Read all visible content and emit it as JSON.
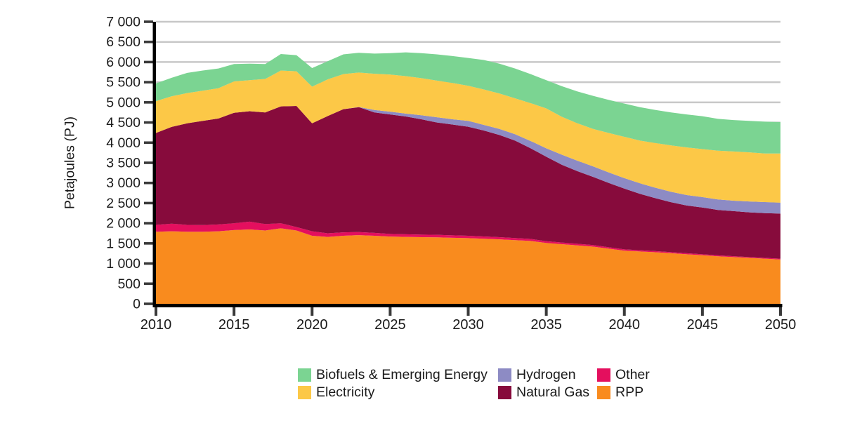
{
  "chart_data": {
    "type": "area",
    "stacked": true,
    "title": "",
    "xlabel": "",
    "ylabel": "Petajoules (PJ)",
    "x_start": 2010,
    "x_end": 2050,
    "x": [
      2010,
      2011,
      2012,
      2013,
      2014,
      2015,
      2016,
      2017,
      2018,
      2019,
      2020,
      2021,
      2022,
      2023,
      2024,
      2025,
      2026,
      2027,
      2028,
      2029,
      2030,
      2031,
      2032,
      2033,
      2034,
      2035,
      2036,
      2037,
      2038,
      2039,
      2040,
      2041,
      2042,
      2043,
      2044,
      2045,
      2046,
      2047,
      2048,
      2049,
      2050
    ],
    "ylim": [
      0,
      7000
    ],
    "ytick_interval": 500,
    "ytick_labels": [
      "0",
      "500",
      "1 000",
      "1 500",
      "2 000",
      "2 500",
      "3 000",
      "3 500",
      "4 000",
      "4 500",
      "5 000",
      "5 500",
      "6 000",
      "6 500",
      "7 000"
    ],
    "xticks": [
      2010,
      2015,
      2020,
      2025,
      2030,
      2035,
      2040,
      2045,
      2050
    ],
    "grid": "horizontal",
    "grid_color": "#c8c8c8",
    "axis_color": "#000000",
    "tick_color": "#3a3a3a",
    "stack_order": "bottom_to_top",
    "series": [
      {
        "name": "RPP",
        "key": "rpp",
        "color": "#F98B1E",
        "values": [
          1790,
          1800,
          1790,
          1790,
          1800,
          1830,
          1845,
          1820,
          1875,
          1820,
          1690,
          1660,
          1690,
          1705,
          1690,
          1670,
          1660,
          1655,
          1650,
          1640,
          1630,
          1615,
          1600,
          1580,
          1560,
          1510,
          1480,
          1450,
          1420,
          1370,
          1320,
          1300,
          1280,
          1255,
          1230,
          1205,
          1180,
          1160,
          1140,
          1120,
          1100
        ]
      },
      {
        "name": "Other",
        "key": "other",
        "color": "#E40F5E",
        "values": [
          170,
          190,
          170,
          165,
          170,
          170,
          195,
          160,
          125,
          85,
          110,
          90,
          85,
          75,
          70,
          65,
          65,
          63,
          62,
          60,
          60,
          57,
          55,
          52,
          50,
          45,
          42,
          40,
          38,
          35,
          32,
          30,
          28,
          27,
          26,
          25,
          24,
          22,
          21,
          20,
          22
        ]
      },
      {
        "name": "Natural Gas",
        "key": "natural-gas",
        "color": "#870B3C",
        "values": [
          2280,
          2400,
          2520,
          2585,
          2630,
          2740,
          2740,
          2770,
          2900,
          3005,
          2680,
          2910,
          3055,
          3100,
          2990,
          2965,
          2925,
          2862,
          2788,
          2750,
          2705,
          2628,
          2535,
          2418,
          2250,
          2095,
          1928,
          1800,
          1692,
          1595,
          1508,
          1400,
          1312,
          1238,
          1184,
          1160,
          1126,
          1118,
          1109,
          1110,
          1118
        ]
      },
      {
        "name": "Hydrogen",
        "key": "hydrogen",
        "color": "#8D8BC4",
        "values": [
          0,
          0,
          0,
          0,
          0,
          0,
          0,
          0,
          0,
          0,
          0,
          0,
          0,
          5,
          60,
          70,
          70,
          100,
          130,
          130,
          145,
          140,
          150,
          160,
          180,
          210,
          250,
          260,
          260,
          260,
          260,
          260,
          260,
          260,
          260,
          260,
          260,
          260,
          270,
          275,
          270
        ]
      },
      {
        "name": "Electricity",
        "key": "electricity",
        "color": "#FCC847",
        "values": [
          790,
          760,
          750,
          750,
          750,
          780,
          770,
          830,
          890,
          860,
          910,
          910,
          870,
          855,
          900,
          920,
          930,
          920,
          910,
          900,
          870,
          880,
          880,
          890,
          940,
          990,
          940,
          930,
          930,
          980,
          1025,
          1060,
          1110,
          1150,
          1180,
          1190,
          1210,
          1220,
          1220,
          1205,
          1220
        ]
      },
      {
        "name": "Biofuels & Emerging Energy",
        "key": "biofuels",
        "color": "#7BD492",
        "values": [
          440,
          460,
          500,
          500,
          490,
          430,
          410,
          370,
          410,
          400,
          460,
          450,
          490,
          490,
          500,
          530,
          590,
          620,
          650,
          670,
          690,
          730,
          740,
          740,
          720,
          700,
          760,
          790,
          820,
          820,
          825,
          830,
          820,
          820,
          820,
          815,
          790,
          780,
          780,
          790,
          780
        ]
      }
    ],
    "legend_position": "bottom",
    "legend": [
      {
        "label": "Biofuels & Emerging Energy",
        "color": "#7BD492"
      },
      {
        "label": "Hydrogen",
        "color": "#8D8BC4"
      },
      {
        "label": "Other",
        "color": "#E40F5E"
      },
      {
        "label": "Electricity",
        "color": "#FCC847"
      },
      {
        "label": "Natural Gas",
        "color": "#870B3C"
      },
      {
        "label": "RPP",
        "color": "#F98B1E"
      }
    ]
  }
}
